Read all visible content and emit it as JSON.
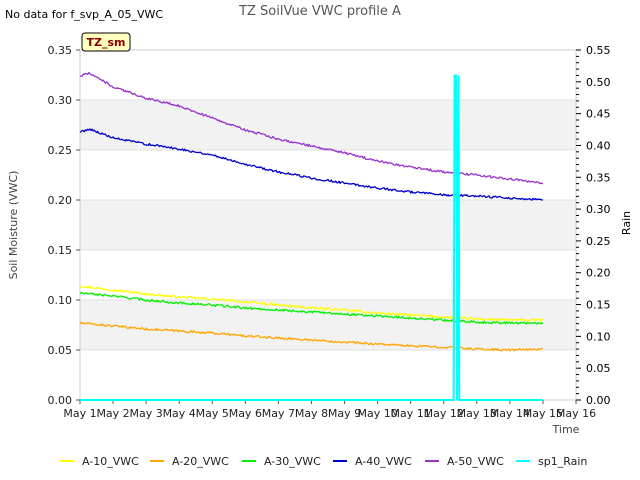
{
  "chart_data": {
    "type": "line",
    "title": "TZ SoilVue VWC profile A",
    "no_data_note": "No data for f_svp_A_05_VWC",
    "site_badge": "TZ_sm",
    "xlabel": "Time",
    "ylabel_left": "Soil Moisture (VWC)",
    "ylabel_right": "Rain",
    "xlim": [
      1,
      16
    ],
    "ylim_left": [
      0,
      0.35
    ],
    "ylim_right": [
      0,
      0.55
    ],
    "x_ticks": [
      1,
      2,
      3,
      4,
      5,
      6,
      7,
      8,
      9,
      10,
      11,
      12,
      13,
      14,
      15,
      16
    ],
    "x_tick_labels": [
      "May 1",
      "May 2",
      "May 3",
      "May 4",
      "May 5",
      "May 6",
      "May 7",
      "May 8",
      "May 9",
      "May 10",
      "May 11",
      "May 12",
      "May 13",
      "May 14",
      "May 15",
      "May 16"
    ],
    "y_ticks_left": [
      "0.00",
      "0.05",
      "0.10",
      "0.15",
      "0.20",
      "0.25",
      "0.30",
      "0.35"
    ],
    "y_ticks_right": [
      "0.00",
      "0.05",
      "0.10",
      "0.15",
      "0.20",
      "0.25",
      "0.30",
      "0.35",
      "0.40",
      "0.45",
      "0.50",
      "0.55"
    ],
    "grid": true,
    "legend_position": "bottom",
    "series": [
      {
        "name": "A-10_VWC",
        "axis": "left",
        "color": "#ffff00",
        "x": [
          1,
          2,
          3,
          4,
          5,
          6,
          7,
          8,
          9,
          10,
          11,
          12,
          13,
          14,
          15
        ],
        "y": [
          0.114,
          0.11,
          0.106,
          0.103,
          0.101,
          0.098,
          0.095,
          0.092,
          0.09,
          0.087,
          0.085,
          0.083,
          0.081,
          0.08,
          0.08
        ]
      },
      {
        "name": "A-20_VWC",
        "axis": "left",
        "color": "#ffa500",
        "x": [
          1,
          2,
          3,
          4,
          5,
          6,
          7,
          8,
          9,
          10,
          11,
          12,
          13,
          14,
          15
        ],
        "y": [
          0.077,
          0.074,
          0.071,
          0.069,
          0.067,
          0.064,
          0.062,
          0.06,
          0.058,
          0.056,
          0.054,
          0.053,
          0.051,
          0.05,
          0.051
        ]
      },
      {
        "name": "A-30_VWC",
        "axis": "left",
        "color": "#00ee00",
        "x": [
          1,
          2,
          3,
          4,
          5,
          6,
          7,
          8,
          9,
          10,
          11,
          12,
          13,
          14,
          15
        ],
        "y": [
          0.107,
          0.104,
          0.1,
          0.097,
          0.095,
          0.092,
          0.09,
          0.088,
          0.086,
          0.084,
          0.082,
          0.08,
          0.078,
          0.077,
          0.077
        ]
      },
      {
        "name": "A-40_VWC",
        "axis": "left",
        "color": "#0000cc",
        "x": [
          1,
          1.3,
          2,
          3,
          4,
          5,
          6,
          7,
          8,
          9,
          10,
          11,
          12,
          13,
          14,
          15
        ],
        "y": [
          0.268,
          0.271,
          0.262,
          0.256,
          0.251,
          0.245,
          0.236,
          0.228,
          0.222,
          0.217,
          0.212,
          0.208,
          0.205,
          0.204,
          0.202,
          0.2
        ]
      },
      {
        "name": "A-50_VWC",
        "axis": "left",
        "color": "#9932cc",
        "x": [
          1,
          1.3,
          2,
          3,
          4,
          5,
          6,
          7,
          8,
          9,
          10,
          11,
          12,
          13,
          14,
          15
        ],
        "y": [
          0.324,
          0.327,
          0.313,
          0.302,
          0.294,
          0.282,
          0.27,
          0.261,
          0.254,
          0.247,
          0.239,
          0.233,
          0.228,
          0.225,
          0.221,
          0.217
        ]
      },
      {
        "name": "sp1_Rain",
        "axis": "right",
        "color": "#00ffff",
        "x": [
          1,
          12.3,
          12.33,
          12.38,
          12.4,
          12.45,
          12.47,
          15
        ],
        "y": [
          0,
          0,
          0.51,
          0.51,
          0,
          0.51,
          0,
          0
        ]
      }
    ]
  }
}
